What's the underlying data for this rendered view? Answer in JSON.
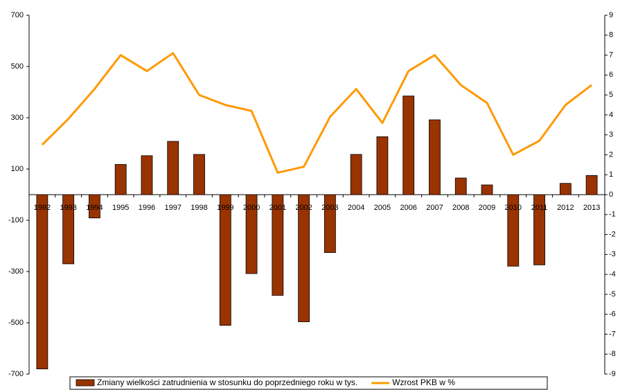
{
  "chart_data": {
    "type": "bar-line",
    "categories": [
      "1992",
      "1993",
      "1994",
      "1995",
      "1996",
      "1997",
      "1998",
      "1999",
      "2000",
      "2001",
      "2002",
      "2003",
      "2004",
      "2005",
      "2006",
      "2007",
      "2008",
      "2009",
      "2010",
      "2011",
      "2012",
      "2013"
    ],
    "series": [
      {
        "name": "Zmiany wielkości zatrudnienia w stosunku do poprzedniego roku w tys.",
        "color": "#993300",
        "type": "bar",
        "values": [
          -680,
          -270,
          -91,
          118,
          152,
          208,
          157,
          -510,
          -308,
          -393,
          -496,
          -226,
          157,
          226,
          385,
          292,
          65,
          38,
          -279,
          -274,
          44,
          75
        ]
      },
      {
        "name": "Wzrost PKB w %",
        "color": "#ff9900",
        "type": "line",
        "axis": "y2",
        "values": [
          2.5,
          3.8,
          5.3,
          7.0,
          6.2,
          7.1,
          5.0,
          4.5,
          4.2,
          1.1,
          1.4,
          3.9,
          5.3,
          3.6,
          6.2,
          7.0,
          5.5,
          4.6,
          2.0,
          2.7,
          4.5,
          5.5
        ]
      }
    ],
    "ylim": [
      -700,
      700
    ],
    "yticks": [
      -700,
      -500,
      -300,
      -100,
      100,
      300,
      500,
      700
    ],
    "y2lim": [
      -9,
      9
    ],
    "y2ticks": [
      -9,
      -8,
      -7,
      -6,
      -5,
      -4,
      -3,
      -2,
      -1,
      0,
      1,
      2,
      3,
      4,
      5,
      6,
      7,
      8,
      9
    ],
    "legend": "bottom"
  }
}
